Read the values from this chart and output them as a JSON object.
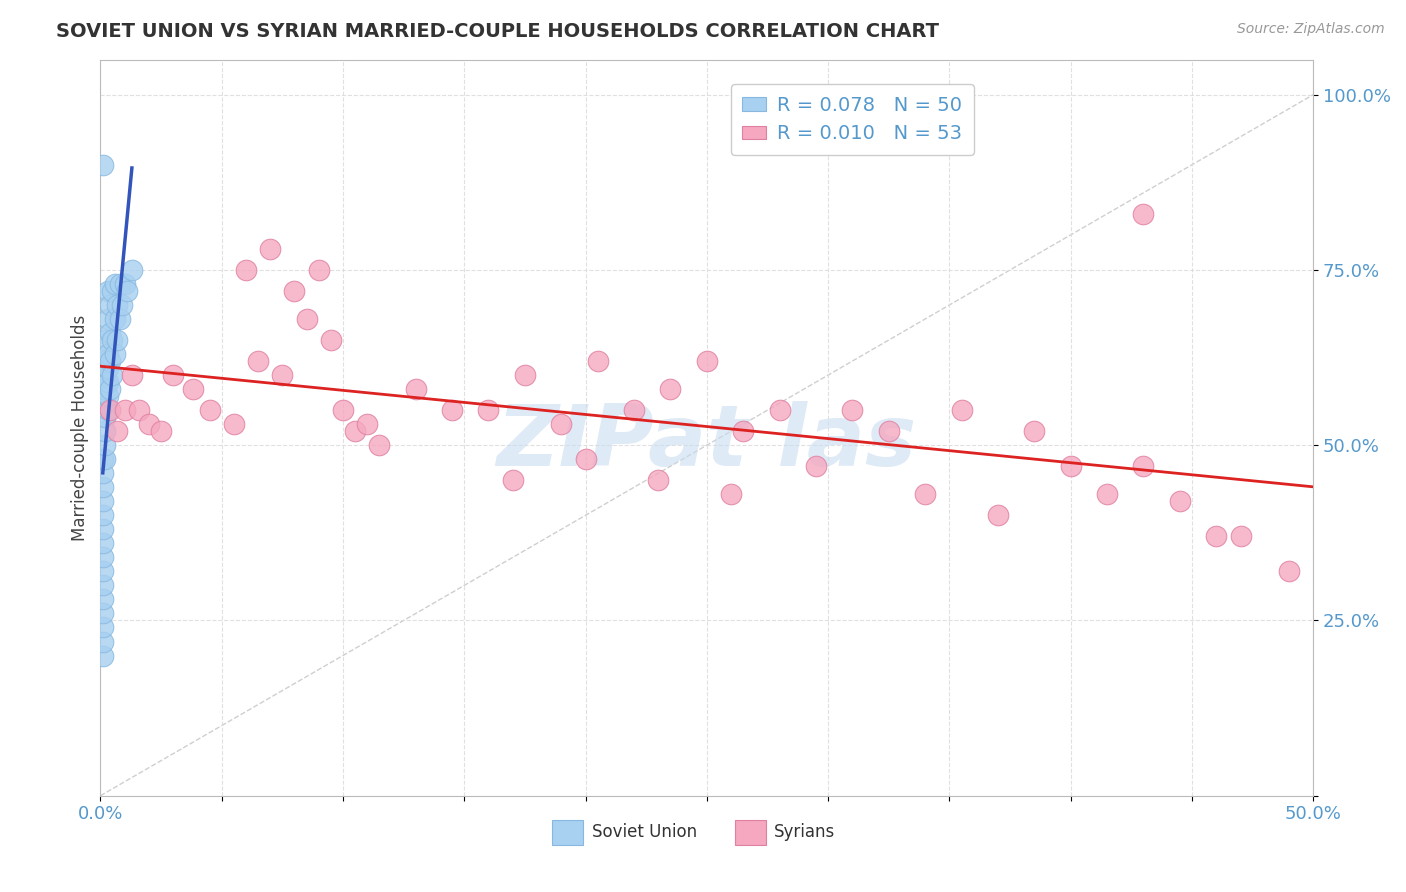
{
  "title": "SOVIET UNION VS SYRIAN MARRIED-COUPLE HOUSEHOLDS CORRELATION CHART",
  "source": "Source: ZipAtlas.com",
  "ylabel": "Married-couple Households",
  "xlim": [
    0.0,
    0.5
  ],
  "ylim": [
    0.0,
    1.05
  ],
  "soviet_color": "#A8D0F0",
  "syrian_color": "#F5A8C0",
  "soviet_edge": "#88B8E0",
  "syrian_edge": "#E080A0",
  "trend_soviet_color": "#3355BB",
  "trend_syrian_color": "#DD2222",
  "diag_color": "#BBBBBB",
  "watermark_color": "#C8DCF0",
  "tick_color": "#5599CC",
  "grid_color": "#DDDDDD",
  "soviet_x": [
    0.001,
    0.001,
    0.001,
    0.001,
    0.001,
    0.001,
    0.001,
    0.001,
    0.001,
    0.001,
    0.001,
    0.001,
    0.001,
    0.001,
    0.001,
    0.002,
    0.002,
    0.002,
    0.002,
    0.002,
    0.002,
    0.002,
    0.002,
    0.002,
    0.003,
    0.003,
    0.003,
    0.003,
    0.003,
    0.003,
    0.003,
    0.004,
    0.004,
    0.004,
    0.004,
    0.005,
    0.005,
    0.005,
    0.006,
    0.006,
    0.006,
    0.007,
    0.007,
    0.008,
    0.008,
    0.009,
    0.01,
    0.011,
    0.013,
    0.001
  ],
  "soviet_y": [
    0.2,
    0.22,
    0.24,
    0.26,
    0.28,
    0.3,
    0.32,
    0.34,
    0.36,
    0.38,
    0.4,
    0.42,
    0.44,
    0.46,
    0.48,
    0.48,
    0.5,
    0.52,
    0.54,
    0.56,
    0.58,
    0.6,
    0.62,
    0.65,
    0.55,
    0.57,
    0.59,
    0.61,
    0.63,
    0.68,
    0.72,
    0.58,
    0.62,
    0.66,
    0.7,
    0.6,
    0.65,
    0.72,
    0.63,
    0.68,
    0.73,
    0.65,
    0.7,
    0.68,
    0.73,
    0.7,
    0.73,
    0.72,
    0.75,
    0.9
  ],
  "syrian_x": [
    0.004,
    0.007,
    0.01,
    0.013,
    0.016,
    0.02,
    0.025,
    0.03,
    0.038,
    0.045,
    0.055,
    0.065,
    0.075,
    0.085,
    0.095,
    0.105,
    0.115,
    0.13,
    0.145,
    0.16,
    0.175,
    0.19,
    0.205,
    0.22,
    0.235,
    0.25,
    0.265,
    0.28,
    0.295,
    0.31,
    0.325,
    0.34,
    0.355,
    0.37,
    0.385,
    0.4,
    0.415,
    0.43,
    0.445,
    0.46,
    0.06,
    0.07,
    0.08,
    0.09,
    0.1,
    0.11,
    0.17,
    0.2,
    0.23,
    0.26,
    0.43,
    0.47,
    0.49
  ],
  "syrian_y": [
    0.55,
    0.52,
    0.55,
    0.6,
    0.55,
    0.53,
    0.52,
    0.6,
    0.58,
    0.55,
    0.53,
    0.62,
    0.6,
    0.68,
    0.65,
    0.52,
    0.5,
    0.58,
    0.55,
    0.55,
    0.6,
    0.53,
    0.62,
    0.55,
    0.58,
    0.62,
    0.52,
    0.55,
    0.47,
    0.55,
    0.52,
    0.43,
    0.55,
    0.4,
    0.52,
    0.47,
    0.43,
    0.47,
    0.42,
    0.37,
    0.75,
    0.78,
    0.72,
    0.75,
    0.55,
    0.53,
    0.45,
    0.48,
    0.45,
    0.43,
    0.83,
    0.37,
    0.32
  ]
}
